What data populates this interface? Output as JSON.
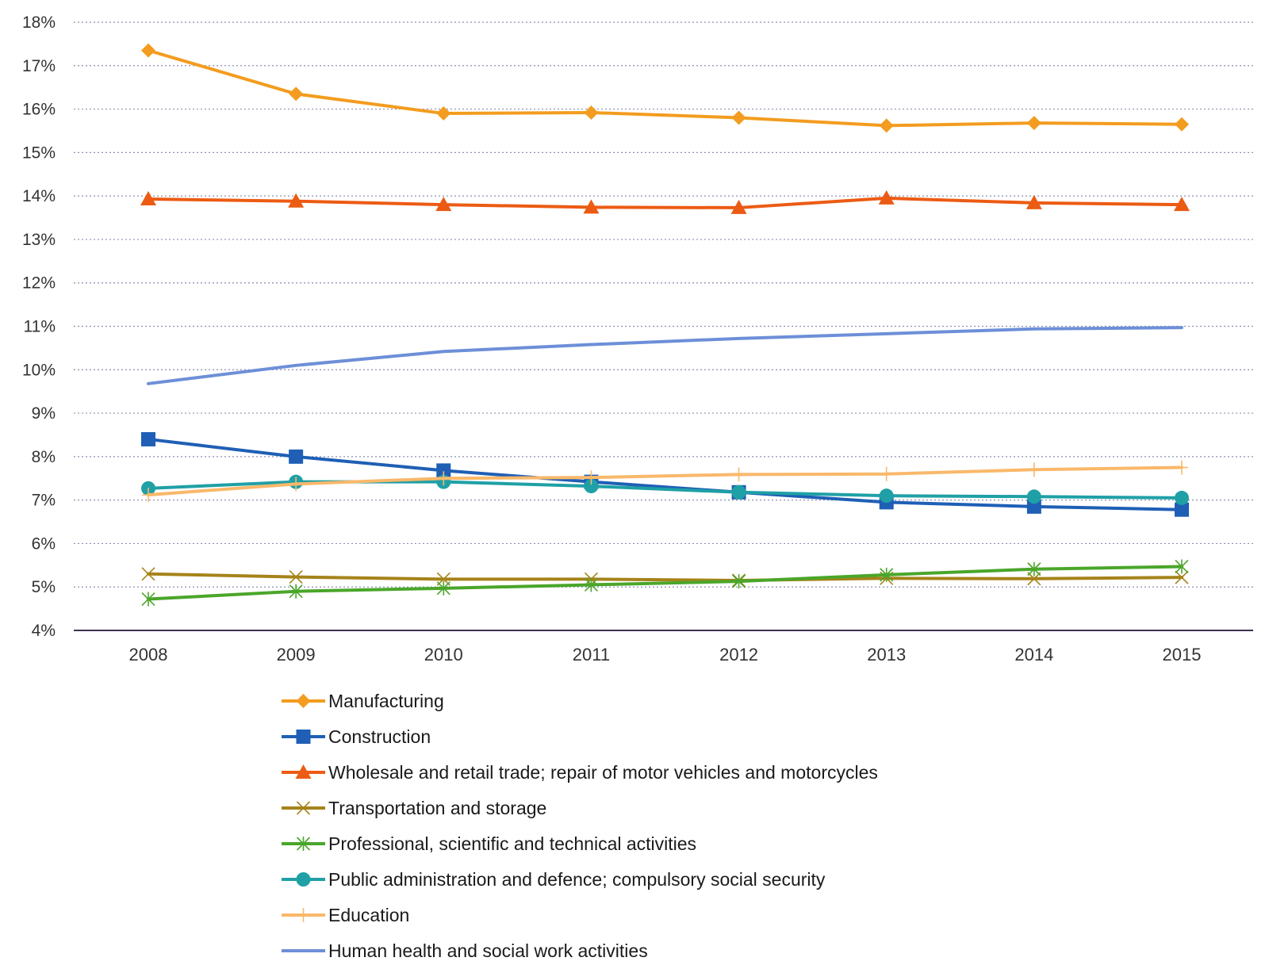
{
  "chart_data": {
    "type": "line",
    "title": "",
    "xlabel": "",
    "ylabel": "",
    "ylim": [
      4,
      18
    ],
    "yticks": [
      4,
      5,
      6,
      7,
      8,
      9,
      10,
      11,
      12,
      13,
      14,
      15,
      16,
      17,
      18
    ],
    "ytick_suffix": "%",
    "grid": true,
    "legend_position": "bottom",
    "x": [
      "2008",
      "2009",
      "2010",
      "2011",
      "2012",
      "2013",
      "2014",
      "2015"
    ],
    "series": [
      {
        "name": "Manufacturing",
        "color": "#f39c1f",
        "marker": "diamond",
        "values": [
          17.35,
          16.35,
          15.9,
          15.92,
          15.8,
          15.62,
          15.68,
          15.65
        ]
      },
      {
        "name": "Construction",
        "color": "#1f5fb5",
        "marker": "square",
        "values": [
          8.4,
          8.0,
          7.68,
          7.42,
          7.18,
          6.95,
          6.85,
          6.78
        ]
      },
      {
        "name": "Wholesale and retail trade; repair of motor vehicles and motorcycles",
        "color": "#ec5b13",
        "marker": "triangle",
        "values": [
          13.93,
          13.88,
          13.8,
          13.74,
          13.73,
          13.95,
          13.84,
          13.8
        ]
      },
      {
        "name": "Transportation and storage",
        "color": "#a6831a",
        "marker": "x",
        "values": [
          5.3,
          5.23,
          5.18,
          5.18,
          5.15,
          5.2,
          5.19,
          5.22
        ]
      },
      {
        "name": "Professional, scientific and technical activities",
        "color": "#4aa62a",
        "marker": "star",
        "values": [
          4.72,
          4.9,
          4.97,
          5.05,
          5.13,
          5.28,
          5.41,
          5.47
        ]
      },
      {
        "name": "Public administration and defence; compulsory social security",
        "color": "#1fa0a6",
        "marker": "circle",
        "values": [
          7.27,
          7.42,
          7.42,
          7.32,
          7.18,
          7.1,
          7.08,
          7.05
        ]
      },
      {
        "name": "Education",
        "color": "#f9b86a",
        "marker": "plus",
        "values": [
          7.12,
          7.37,
          7.5,
          7.52,
          7.59,
          7.6,
          7.7,
          7.75
        ]
      },
      {
        "name": "Human health and social work activities",
        "color": "#6d8fd8",
        "marker": "none",
        "values": [
          9.68,
          10.1,
          10.42,
          10.58,
          10.72,
          10.83,
          10.94,
          10.97
        ]
      }
    ]
  }
}
